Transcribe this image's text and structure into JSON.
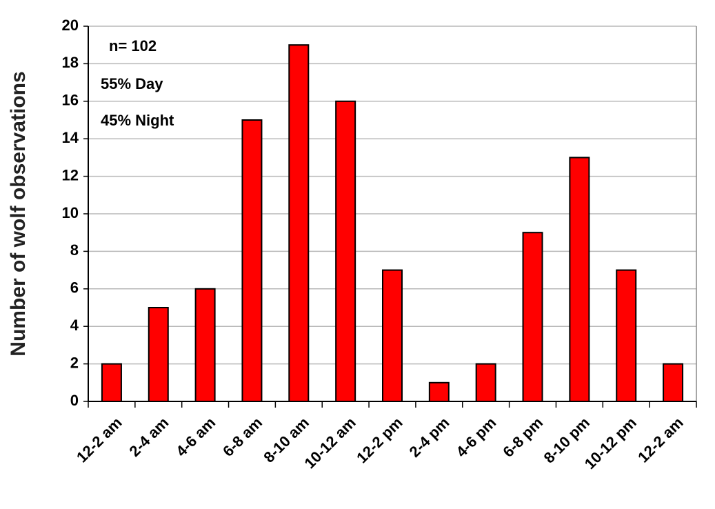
{
  "chart_data": {
    "type": "bar",
    "y_label": "Number of wolf observations",
    "annotations": [
      "n= 102",
      "55% Day",
      "45% Night"
    ],
    "categories": [
      "12-2 am",
      "2-4 am",
      "4-6 am",
      "6-8 am",
      "8-10 am",
      "10-12 am",
      "12-2 pm",
      "2-4 pm",
      "4-6 pm",
      "6-8 pm",
      "8-10 pm",
      "10-12 pm",
      "12-2 am"
    ],
    "values": [
      2,
      5,
      6,
      15,
      19,
      16,
      7,
      1,
      2,
      9,
      13,
      7,
      2
    ],
    "color": "#ff0000",
    "ylim": [
      0,
      20
    ],
    "yticks": [
      0,
      2,
      4,
      6,
      8,
      10,
      12,
      14,
      16,
      18,
      20
    ],
    "grid": true
  }
}
